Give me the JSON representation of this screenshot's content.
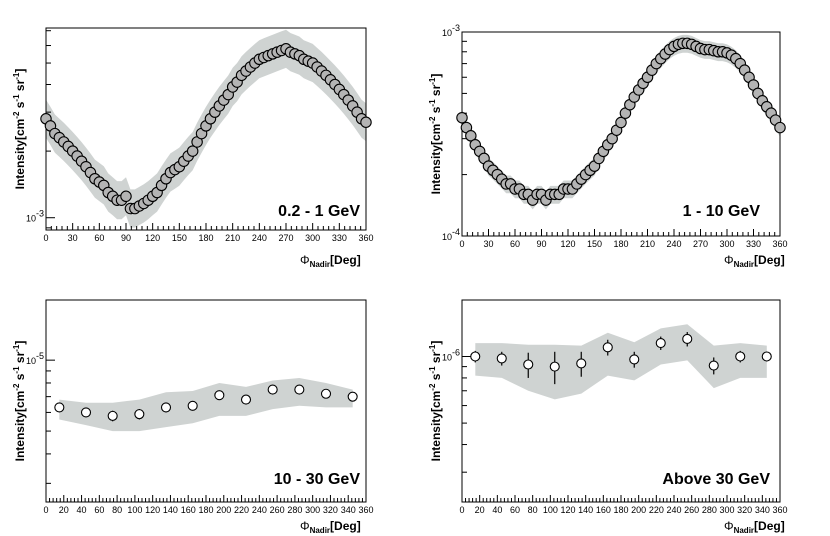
{
  "chart_data": [
    {
      "type": "scatter",
      "title": "",
      "panel_label": "0.2 - 1 GeV",
      "xlabel": "Φ",
      "xlabel_sub": "Nadir",
      "xlabel_suffix": "[Deg]",
      "ylabel": "Intensity[cm",
      "ylabel_parts": [
        "Intensity[cm",
        "-2",
        " s",
        "-1",
        " sr",
        "-1",
        "]"
      ],
      "xlim": [
        0,
        360
      ],
      "ylim": [
        0.00088,
        0.0072
      ],
      "log_y": true,
      "grid": false,
      "x_ticks": [
        "0",
        "30",
        "60",
        "90",
        "120",
        "150",
        "180",
        "210",
        "240",
        "270",
        "300",
        "330",
        "360"
      ],
      "y_ticks": [
        {
          "base": "10",
          "exp": "-3",
          "value": 0.001
        }
      ],
      "series": [
        {
          "x": [
            0,
            5,
            10,
            15,
            20,
            25,
            30,
            35,
            40,
            45,
            50,
            55,
            60,
            65,
            70,
            75,
            80,
            85,
            90,
            95,
            100,
            105,
            110,
            115,
            120,
            125,
            130,
            135,
            140,
            145,
            150,
            155,
            160,
            165,
            170,
            175,
            180,
            185,
            190,
            195,
            200,
            205,
            210,
            215,
            220,
            225,
            230,
            235,
            240,
            245,
            250,
            255,
            260,
            265,
            270,
            275,
            280,
            285,
            290,
            295,
            300,
            305,
            310,
            315,
            320,
            325,
            330,
            335,
            340,
            345,
            350,
            355,
            360
          ],
          "y": [
            0.0028,
            0.0026,
            0.0024,
            0.0023,
            0.0022,
            0.0021,
            0.002,
            0.0019,
            0.0018,
            0.0017,
            0.0016,
            0.0015,
            0.00145,
            0.0014,
            0.0013,
            0.00125,
            0.0012,
            0.0012,
            0.00125,
            0.0011,
            0.0011,
            0.00113,
            0.00116,
            0.0012,
            0.00125,
            0.0013,
            0.0014,
            0.0015,
            0.0016,
            0.00165,
            0.0017,
            0.0018,
            0.0019,
            0.002,
            0.0022,
            0.0024,
            0.0026,
            0.0028,
            0.003,
            0.0032,
            0.0034,
            0.0036,
            0.0039,
            0.0041,
            0.0044,
            0.0046,
            0.0048,
            0.005,
            0.0052,
            0.0053,
            0.0054,
            0.0055,
            0.0056,
            0.0057,
            0.0058,
            0.0056,
            0.0055,
            0.0054,
            0.0052,
            0.0051,
            0.005,
            0.0048,
            0.0046,
            0.0044,
            0.0042,
            0.004,
            0.0038,
            0.0036,
            0.0034,
            0.0032,
            0.003,
            0.0028,
            0.0027
          ],
          "band": [
            0.82,
            1.22
          ]
        }
      ]
    },
    {
      "type": "scatter",
      "title": "",
      "panel_label": "1 - 10 GeV",
      "xlabel": "Φ",
      "xlabel_sub": "Nadir",
      "xlabel_suffix": "[Deg]",
      "ylabel": "Intensity[cm",
      "ylabel_parts": [
        "Intensity[cm",
        "-2",
        " s",
        "-1",
        " sr",
        "-1",
        "]"
      ],
      "xlim": [
        0,
        360
      ],
      "ylim": [
        0.0001,
        0.001
      ],
      "log_y": true,
      "grid": false,
      "x_ticks": [
        "0",
        "30",
        "60",
        "90",
        "120",
        "150",
        "180",
        "210",
        "240",
        "270",
        "300",
        "330",
        "360"
      ],
      "y_ticks": [
        {
          "base": "10",
          "exp": "-4",
          "value": 0.0001
        },
        {
          "base": "10",
          "exp": "-3",
          "value": 0.001
        }
      ],
      "series": [
        {
          "x": [
            0,
            5,
            10,
            15,
            20,
            25,
            30,
            35,
            40,
            45,
            50,
            55,
            60,
            65,
            70,
            75,
            80,
            85,
            90,
            95,
            100,
            105,
            110,
            115,
            120,
            125,
            130,
            135,
            140,
            145,
            150,
            155,
            160,
            165,
            170,
            175,
            180,
            185,
            190,
            195,
            200,
            205,
            210,
            215,
            220,
            225,
            230,
            235,
            240,
            245,
            250,
            255,
            260,
            265,
            270,
            275,
            280,
            285,
            290,
            295,
            300,
            305,
            310,
            315,
            320,
            325,
            330,
            335,
            340,
            345,
            350,
            355,
            360
          ],
          "y": [
            0.00038,
            0.00034,
            0.00031,
            0.00028,
            0.00026,
            0.00024,
            0.00022,
            0.00021,
            0.0002,
            0.00019,
            0.00018,
            0.00018,
            0.00017,
            0.00017,
            0.00016,
            0.00016,
            0.00015,
            0.00016,
            0.00016,
            0.00015,
            0.00016,
            0.00016,
            0.00016,
            0.00017,
            0.00017,
            0.00017,
            0.00018,
            0.00019,
            0.0002,
            0.00021,
            0.00022,
            0.00024,
            0.00026,
            0.00028,
            0.0003,
            0.00033,
            0.00036,
            0.0004,
            0.00044,
            0.00048,
            0.00052,
            0.00056,
            0.0006,
            0.00065,
            0.0007,
            0.00074,
            0.00078,
            0.00082,
            0.00085,
            0.00087,
            0.00088,
            0.00088,
            0.00087,
            0.00085,
            0.00083,
            0.00082,
            0.00082,
            0.00081,
            0.0008,
            0.0008,
            0.00079,
            0.00077,
            0.00074,
            0.0007,
            0.00065,
            0.0006,
            0.00055,
            0.0005,
            0.00046,
            0.00043,
            0.0004,
            0.00037,
            0.00034
          ],
          "band": [
            0.9,
            1.1
          ]
        }
      ]
    },
    {
      "type": "scatter",
      "title": "",
      "panel_label": "10 - 30 GeV",
      "xlabel": "Φ",
      "xlabel_sub": "Nadir",
      "xlabel_suffix": "[Deg]",
      "ylabel": "Intensity[cm",
      "ylabel_parts": [
        "Intensity[cm",
        "-2",
        " s",
        "-1",
        " sr",
        "-1",
        "]"
      ],
      "xlim": [
        0,
        360
      ],
      "ylim": [
        2.5e-06,
        1.8e-05
      ],
      "log_y": true,
      "grid": false,
      "x_ticks": [
        "0",
        "20",
        "40",
        "60",
        "80",
        "100",
        "120",
        "140",
        "160",
        "180",
        "200",
        "220",
        "240",
        "260",
        "280",
        "300",
        "320",
        "340",
        "360"
      ],
      "y_ticks": [
        {
          "base": "10",
          "exp": "-5",
          "value": 1e-05
        }
      ],
      "series": [
        {
          "x": [
            15,
            45,
            75,
            105,
            135,
            165,
            195,
            225,
            255,
            285,
            315,
            345
          ],
          "y": [
            6.3e-06,
            6e-06,
            5.8e-06,
            5.9e-06,
            6.3e-06,
            6.4e-06,
            7.1e-06,
            6.8e-06,
            7.5e-06,
            7.5e-06,
            7.2e-06,
            7e-06
          ],
          "err": [
            2e-07,
            2e-07,
            3e-07,
            3e-07,
            3e-07,
            2e-07,
            2e-07,
            2e-07,
            2e-07,
            2e-07,
            2e-07,
            2e-07
          ],
          "band_lo": [
            5.6e-06,
            5.3e-06,
            5e-06,
            5e-06,
            5.2e-06,
            5.4e-06,
            5.8e-06,
            5.8e-06,
            6.2e-06,
            6.4e-06,
            6.3e-06,
            6.3e-06
          ],
          "band_hi": [
            6.8e-06,
            6.6e-06,
            6.6e-06,
            6.8e-06,
            7.3e-06,
            7.4e-06,
            8e-06,
            7.7e-06,
            8.2e-06,
            8.4e-06,
            8e-06,
            7.5e-06
          ]
        }
      ]
    },
    {
      "type": "scatter",
      "title": "",
      "panel_label": "Above 30 GeV",
      "xlabel": "Φ",
      "xlabel_sub": "Nadir",
      "xlabel_suffix": "[Deg]",
      "ylabel": "Intensity[cm",
      "ylabel_parts": [
        "Intensity[cm",
        "-2",
        " s",
        "-1",
        " sr",
        "-1",
        "]"
      ],
      "xlim": [
        0,
        360
      ],
      "ylim": [
        2.2e-07,
        1.8e-06
      ],
      "log_y": true,
      "grid": false,
      "x_ticks": [
        "0",
        "20",
        "40",
        "60",
        "80",
        "100",
        "120",
        "140",
        "160",
        "180",
        "200",
        "220",
        "240",
        "260",
        "280",
        "300",
        "320",
        "340",
        "360"
      ],
      "y_ticks": [
        {
          "base": "10",
          "exp": "-6",
          "value": 1e-06
        }
      ],
      "series": [
        {
          "x": [
            15,
            45,
            75,
            105,
            135,
            165,
            195,
            225,
            255,
            285,
            315,
            345
          ],
          "y": [
            1e-06,
            9.8e-07,
            9.2e-07,
            9e-07,
            9.3e-07,
            1.1e-06,
            9.7e-07,
            1.15e-06,
            1.2e-06,
            9.1e-07,
            1e-06,
            1e-06
          ],
          "err": [
            6e-08,
            7e-08,
            1.2e-07,
            1.5e-07,
            1.2e-07,
            9e-08,
            8e-08,
            8e-08,
            9e-08,
            8e-08,
            6e-08,
            5e-08
          ],
          "band_lo": [
            8.2e-07,
            8e-07,
            7e-07,
            6.4e-07,
            6.8e-07,
            8.2e-07,
            7.8e-07,
            9.2e-07,
            9.6e-07,
            7.2e-07,
            8e-07,
            8e-07
          ],
          "band_hi": [
            1.15e-06,
            1.15e-06,
            1.13e-06,
            1.13e-06,
            1.12e-06,
            1.28e-06,
            1.16e-06,
            1.34e-06,
            1.4e-06,
            1.12e-06,
            1.15e-06,
            1.12e-06
          ]
        }
      ]
    }
  ]
}
